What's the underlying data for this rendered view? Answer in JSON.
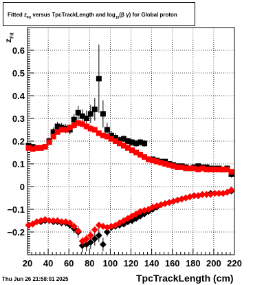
{
  "title": {
    "part1": "Fitted  z",
    "part1_sub": "Fit",
    "part2": "  versus TpcTrackLength and log",
    "part2_sub": "10",
    "part3": "(β  γ) for Global proton"
  },
  "footer": "Thu Jun 26 21:58:01 2025",
  "chart_data": {
    "type": "scatter",
    "xlabel": "TpcTrackLength (cm)",
    "ylabel": "z",
    "ylabel_sub": "Fit",
    "xlim": [
      20,
      220
    ],
    "ylim": [
      -0.3,
      0.7
    ],
    "xticks": [
      "20",
      "40",
      "60",
      "80",
      "100",
      "120",
      "140",
      "160",
      "180",
      "200",
      "220"
    ],
    "yticks": [
      "−0.2",
      "−0.1",
      "0",
      "0.1",
      "0.2",
      "0.3",
      "0.4",
      "0.5",
      "0.6"
    ],
    "grid": true,
    "colors": {
      "black_series": "#000000",
      "red_series": "#ff0000"
    },
    "series": [
      {
        "color": "#000000",
        "marker": "square",
        "x": [
          21,
          25,
          29,
          33,
          37,
          41,
          45,
          49,
          53,
          57,
          61,
          65,
          69,
          73,
          77,
          81,
          85,
          89,
          93,
          97,
          101,
          105,
          109,
          113,
          117,
          121,
          125,
          129,
          133,
          137,
          141,
          145,
          149,
          153,
          157,
          161,
          165,
          169,
          173,
          177,
          181,
          185,
          189,
          193,
          197,
          201,
          205,
          209,
          213,
          217
        ],
        "y": [
          0.18,
          0.175,
          0.17,
          0.17,
          0.175,
          0.2,
          0.24,
          0.265,
          0.26,
          0.255,
          0.25,
          0.295,
          0.325,
          0.31,
          0.3,
          0.32,
          0.34,
          0.475,
          0.32,
          0.25,
          0.225,
          0.215,
          0.205,
          0.21,
          0.2,
          0.195,
          0.19,
          0.195,
          0.19,
          0.12,
          0.12,
          0.115,
          0.11,
          0.11,
          0.1,
          0.095,
          0.09,
          0.09,
          0.085,
          0.08,
          0.085,
          0.09,
          0.085,
          0.085,
          0.08,
          0.08,
          0.08,
          0.075,
          0.08,
          0.055
        ],
        "yerr": [
          0.01,
          0.01,
          0.01,
          0.01,
          0.01,
          0.015,
          0.02,
          0.02,
          0.02,
          0.02,
          0.02,
          0.025,
          0.03,
          0.03,
          0.035,
          0.04,
          0.05,
          0.15,
          0.06,
          0.03,
          0.02,
          0.02,
          0.015,
          0.015,
          0.015,
          0.015,
          0.015,
          0.015,
          0.015,
          0.01,
          0.01,
          0.01,
          0.01,
          0.01,
          0.01,
          0.01,
          0.01,
          0.01,
          0.01,
          0.01,
          0.01,
          0.01,
          0.01,
          0.01,
          0.01,
          0.01,
          0.01,
          0.01,
          0.01,
          0.015
        ]
      },
      {
        "color": "#000000",
        "marker": "diamond",
        "x": [
          21,
          25,
          29,
          33,
          37,
          41,
          45,
          49,
          53,
          57,
          61,
          65,
          69,
          73,
          77,
          81,
          85,
          89,
          93,
          97,
          101,
          105,
          109,
          113,
          117,
          121,
          125,
          129,
          133,
          137,
          141,
          145,
          149,
          153,
          157,
          161,
          165,
          169,
          173,
          177,
          181,
          185,
          189,
          193,
          197,
          201,
          205,
          209,
          213,
          217
        ],
        "y": [
          -0.17,
          -0.165,
          -0.155,
          -0.155,
          -0.15,
          -0.15,
          -0.155,
          -0.155,
          -0.16,
          -0.16,
          -0.17,
          -0.185,
          -0.2,
          -0.26,
          -0.255,
          -0.245,
          -0.23,
          -0.215,
          -0.255,
          -0.2,
          -0.18,
          -0.175,
          -0.17,
          -0.165,
          -0.155,
          -0.15,
          -0.14,
          -0.13,
          -0.12,
          -0.11,
          -0.1,
          -0.09,
          -0.08,
          -0.075,
          -0.07,
          -0.065,
          -0.06,
          -0.055,
          -0.05,
          -0.045,
          -0.04,
          -0.04,
          -0.035,
          -0.035,
          -0.03,
          -0.03,
          -0.03,
          -0.03,
          -0.025,
          -0.02
        ],
        "yerr": [
          0.01,
          0.01,
          0.01,
          0.01,
          0.01,
          0.01,
          0.01,
          0.01,
          0.01,
          0.015,
          0.015,
          0.02,
          0.025,
          0.03,
          0.03,
          0.03,
          0.03,
          0.03,
          0.03,
          0.02,
          0.015,
          0.01,
          0.01,
          0.01,
          0.01,
          0.01,
          0.01,
          0.01,
          0.01,
          0.01,
          0.01,
          0.01,
          0.01,
          0.01,
          0.01,
          0.01,
          0.01,
          0.01,
          0.01,
          0.01,
          0.01,
          0.01,
          0.01,
          0.01,
          0.01,
          0.01,
          0.01,
          0.01,
          0.01,
          0.01
        ]
      },
      {
        "color": "#ff0000",
        "marker": "square",
        "x": [
          21,
          25,
          29,
          33,
          37,
          41,
          45,
          49,
          53,
          57,
          61,
          65,
          69,
          73,
          77,
          81,
          85,
          89,
          93,
          97,
          101,
          105,
          109,
          113,
          117,
          121,
          125,
          129,
          133,
          137,
          141,
          145,
          149,
          153,
          157,
          161,
          165,
          169,
          173,
          177,
          181,
          185,
          189,
          193,
          197,
          201,
          205,
          209,
          213,
          217
        ],
        "y": [
          0.17,
          0.165,
          0.17,
          0.17,
          0.175,
          0.195,
          0.22,
          0.24,
          0.25,
          0.25,
          0.26,
          0.27,
          0.28,
          0.275,
          0.265,
          0.255,
          0.25,
          0.235,
          0.225,
          0.22,
          0.21,
          0.2,
          0.19,
          0.18,
          0.17,
          0.16,
          0.15,
          0.14,
          0.13,
          0.12,
          0.115,
          0.11,
          0.105,
          0.1,
          0.095,
          0.09,
          0.085,
          0.085,
          0.08,
          0.08,
          0.08,
          0.075,
          0.08,
          0.075,
          0.075,
          0.075,
          0.075,
          0.075,
          0.075,
          0.065
        ],
        "yerr": [
          0.01,
          0.01,
          0.01,
          0.01,
          0.01,
          0.01,
          0.01,
          0.01,
          0.01,
          0.01,
          0.015,
          0.015,
          0.015,
          0.015,
          0.015,
          0.015,
          0.01,
          0.01,
          0.01,
          0.01,
          0.01,
          0.01,
          0.01,
          0.01,
          0.01,
          0.01,
          0.01,
          0.01,
          0.01,
          0.01,
          0.01,
          0.01,
          0.01,
          0.01,
          0.01,
          0.01,
          0.01,
          0.01,
          0.01,
          0.01,
          0.01,
          0.01,
          0.01,
          0.01,
          0.01,
          0.01,
          0.01,
          0.01,
          0.01,
          0.01
        ]
      },
      {
        "color": "#ff0000",
        "marker": "diamond",
        "x": [
          21,
          25,
          29,
          33,
          37,
          41,
          45,
          49,
          53,
          57,
          61,
          65,
          69,
          73,
          77,
          81,
          85,
          89,
          93,
          97,
          101,
          105,
          109,
          113,
          117,
          121,
          125,
          129,
          133,
          137,
          141,
          145,
          149,
          153,
          157,
          161,
          165,
          169,
          173,
          177,
          181,
          185,
          189,
          193,
          197,
          201,
          205,
          209,
          213,
          217
        ],
        "y": [
          -0.17,
          -0.165,
          -0.155,
          -0.15,
          -0.145,
          -0.15,
          -0.15,
          -0.15,
          -0.155,
          -0.155,
          -0.16,
          -0.175,
          -0.195,
          -0.24,
          -0.23,
          -0.215,
          -0.19,
          -0.17,
          -0.175,
          -0.18,
          -0.175,
          -0.17,
          -0.16,
          -0.15,
          -0.14,
          -0.13,
          -0.12,
          -0.11,
          -0.105,
          -0.1,
          -0.09,
          -0.085,
          -0.08,
          -0.075,
          -0.07,
          -0.065,
          -0.06,
          -0.055,
          -0.05,
          -0.045,
          -0.04,
          -0.04,
          -0.035,
          -0.035,
          -0.035,
          -0.03,
          -0.03,
          -0.03,
          -0.025,
          -0.015
        ],
        "yerr": [
          0.01,
          0.01,
          0.01,
          0.01,
          0.01,
          0.01,
          0.01,
          0.01,
          0.01,
          0.01,
          0.01,
          0.015,
          0.015,
          0.02,
          0.02,
          0.02,
          0.015,
          0.015,
          0.015,
          0.01,
          0.01,
          0.01,
          0.01,
          0.01,
          0.01,
          0.01,
          0.01,
          0.01,
          0.01,
          0.01,
          0.01,
          0.01,
          0.01,
          0.01,
          0.01,
          0.01,
          0.01,
          0.01,
          0.01,
          0.01,
          0.01,
          0.01,
          0.01,
          0.01,
          0.01,
          0.01,
          0.01,
          0.01,
          0.01,
          0.01
        ]
      }
    ]
  }
}
